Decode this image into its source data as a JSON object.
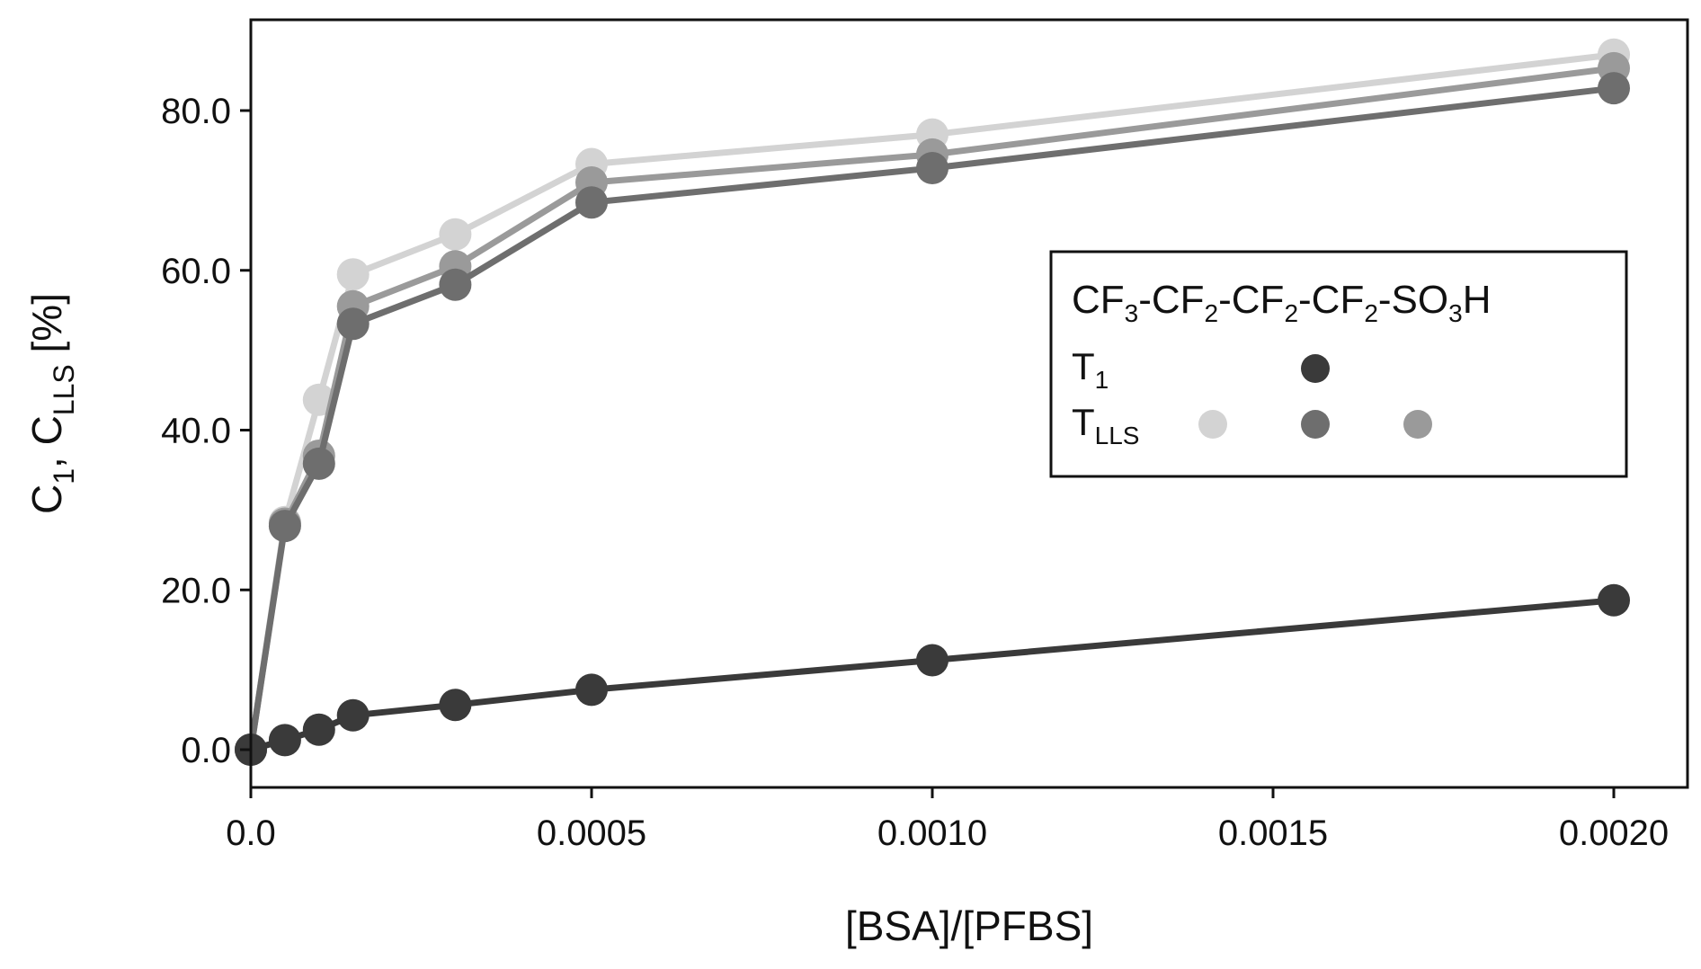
{
  "chart_data": {
    "type": "line",
    "title": "",
    "xlabel": "[BSA]/[PFBS]",
    "ylabel": {
      "main": "C",
      "sub1": "1",
      "sep": ", C",
      "sub2": "LLS",
      "unit": " [%]"
    },
    "xlim": [
      0,
      0.00205
    ],
    "ylim": [
      -4,
      91
    ],
    "x_ticks": [
      0,
      0.0005,
      0.001,
      0.0015,
      0.002
    ],
    "x_tick_labels": [
      "0.0",
      "0.0005",
      "0.0010",
      "0.0015",
      "0.0020"
    ],
    "y_ticks": [
      0,
      20,
      40,
      60,
      80
    ],
    "y_tick_labels": [
      "0.0",
      "20.0",
      "40.0",
      "60.0",
      "80.0"
    ],
    "x": [
      0,
      5e-05,
      0.0001,
      0.00015,
      0.0003,
      0.0005,
      0.001,
      0.002
    ],
    "series": [
      {
        "name": "T_LLS (light)",
        "color": "#d3d3d3",
        "values": [
          0,
          28.5,
          43.8,
          59.5,
          64.5,
          73.3,
          77.0,
          87.0
        ]
      },
      {
        "name": "T_LLS (medium)",
        "color": "#9a9a9a",
        "values": [
          0,
          28.3,
          36.8,
          55.5,
          60.5,
          71.0,
          74.5,
          85.3
        ]
      },
      {
        "name": "T_LLS (dark)",
        "color": "#6e6e6e",
        "values": [
          0,
          28.0,
          35.8,
          53.3,
          58.2,
          68.5,
          72.8,
          82.8
        ]
      },
      {
        "name": "T_1",
        "color": "#3a3a3a",
        "values": [
          0,
          1.2,
          2.5,
          4.3,
          5.6,
          7.5,
          11.2,
          18.7
        ]
      }
    ],
    "legend": {
      "placement": "center-right",
      "title": {
        "p1": "CF",
        "s1": "3",
        "p2": "-CF",
        "s2": "2",
        "p3": "-CF",
        "s3": "2",
        "p4": "-CF",
        "s4": "2",
        "p5": "-SO",
        "s5": "3",
        "p6": "H"
      },
      "rows": [
        {
          "label": "T",
          "sub": "1",
          "colors": [
            "#3a3a3a"
          ]
        },
        {
          "label": "T",
          "sub": "LLS",
          "colors": [
            "#d3d3d3",
            "#6e6e6e",
            "#9a9a9a"
          ]
        }
      ]
    }
  }
}
